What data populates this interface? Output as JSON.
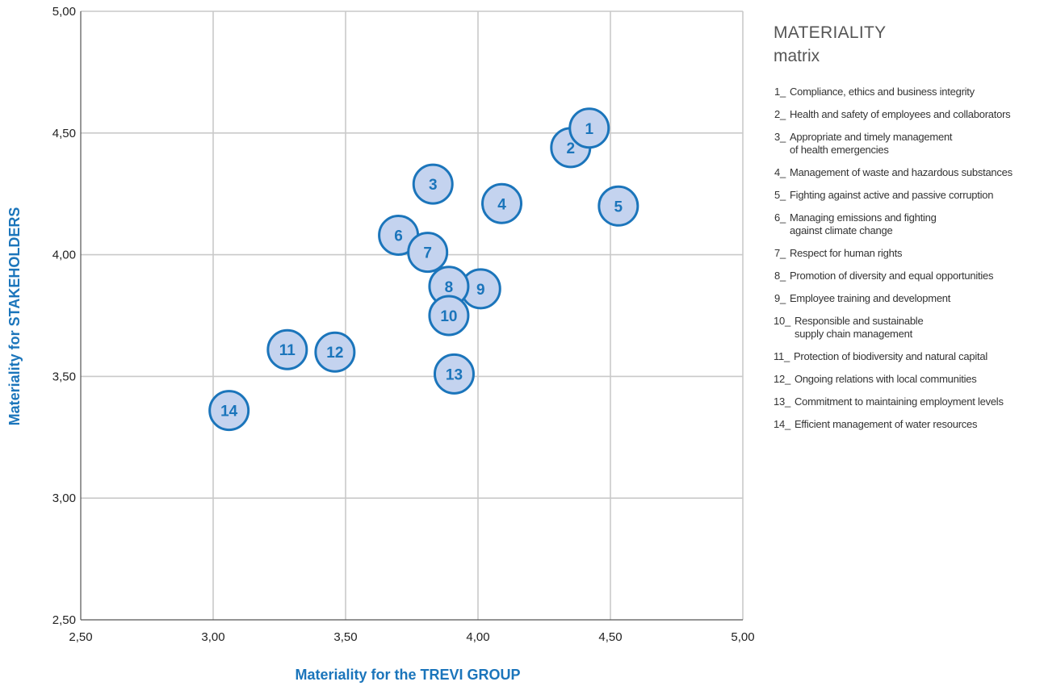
{
  "legend": {
    "title": "MATERIALITY",
    "subtitle": "matrix",
    "separator": "_",
    "items": [
      {
        "num": "1",
        "text": "Compliance, ethics and business integrity"
      },
      {
        "num": "2",
        "text": "Health and safety of employees and collaborators"
      },
      {
        "num": "3",
        "text": "Appropriate and timely management\n of health emergencies"
      },
      {
        "num": "4",
        "text": "Management of waste and hazardous substances"
      },
      {
        "num": "5",
        "text": "Fighting against active and passive corruption"
      },
      {
        "num": "6",
        "text": "Managing emissions and fighting\n against climate change"
      },
      {
        "num": "7",
        "text": "Respect for human rights"
      },
      {
        "num": "8",
        "text": "Promotion of diversity and equal opportunities"
      },
      {
        "num": "9",
        "text": "Employee training and development"
      },
      {
        "num": "10",
        "text": "Responsible and sustainable\n supply chain management"
      },
      {
        "num": "11",
        "text": "Protection of biodiversity and natural capital"
      },
      {
        "num": "12",
        "text": "Ongoing relations with local communities"
      },
      {
        "num": "13",
        "text": "Commitment to maintaining employment levels"
      },
      {
        "num": "14",
        "text": "Efficient management of water resources"
      }
    ]
  },
  "colors": {
    "accent": "#1b75bb",
    "bubble_fill": "#c4d3ef",
    "grid": "#c9c9c9"
  },
  "chart_data": {
    "type": "scatter",
    "xlabel_prefix": "Materiality for the ",
    "xlabel_emph": "TREVI GROUP",
    "ylabel_prefix": "Materiality for ",
    "ylabel_emph": "STAKEHOLDERS",
    "xlim": [
      2.5,
      5.0
    ],
    "ylim": [
      2.5,
      5.0
    ],
    "xticks": [
      2.5,
      3.0,
      3.5,
      4.0,
      4.5,
      5.0
    ],
    "yticks": [
      2.5,
      3.0,
      3.5,
      4.0,
      4.5,
      5.0
    ],
    "xtick_labels": [
      "2,50",
      "3,00",
      "3,50",
      "4,00",
      "4,50",
      "5,00"
    ],
    "ytick_labels": [
      "2,50",
      "3,00",
      "3,50",
      "4,00",
      "4,50",
      "5,00"
    ],
    "grid": true,
    "points": [
      {
        "label": "2",
        "x": 4.35,
        "y": 4.44
      },
      {
        "label": "1",
        "x": 4.42,
        "y": 4.52
      },
      {
        "label": "5",
        "x": 4.53,
        "y": 4.2
      },
      {
        "label": "4",
        "x": 4.09,
        "y": 4.21
      },
      {
        "label": "3",
        "x": 3.83,
        "y": 4.29
      },
      {
        "label": "6",
        "x": 3.7,
        "y": 4.08
      },
      {
        "label": "7",
        "x": 3.81,
        "y": 4.01
      },
      {
        "label": "9",
        "x": 4.01,
        "y": 3.86
      },
      {
        "label": "8",
        "x": 3.89,
        "y": 3.87
      },
      {
        "label": "10",
        "x": 3.89,
        "y": 3.75
      },
      {
        "label": "13",
        "x": 3.91,
        "y": 3.51
      },
      {
        "label": "11",
        "x": 3.28,
        "y": 3.61
      },
      {
        "label": "12",
        "x": 3.46,
        "y": 3.6
      },
      {
        "label": "14",
        "x": 3.06,
        "y": 3.36
      }
    ]
  }
}
